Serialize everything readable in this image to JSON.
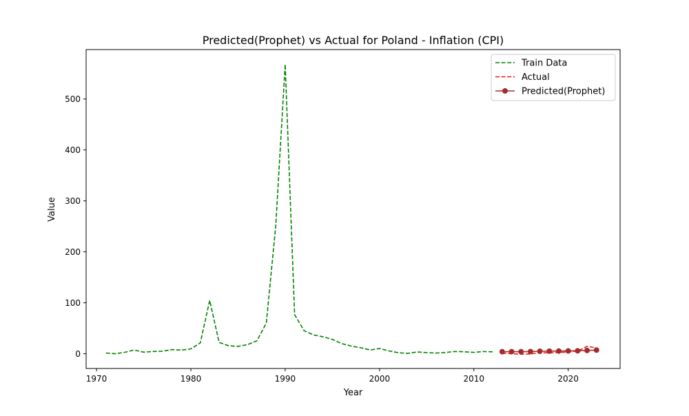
{
  "chart_data": {
    "type": "line",
    "title": "Predicted(Prophet) vs Actual for Poland - Inflation (CPI)",
    "xlabel": "Year",
    "ylabel": "Value",
    "xlim": [
      1968.9,
      2025.5
    ],
    "ylim": [
      -29,
      597
    ],
    "x_ticks": [
      1970,
      1980,
      1990,
      2000,
      2010,
      2020
    ],
    "y_ticks": [
      0,
      100,
      200,
      300,
      400,
      500
    ],
    "grid": false,
    "legend_position": "top-right",
    "series": [
      {
        "name": "Train Data",
        "color": "#008000",
        "style": "dashed",
        "marker": "none",
        "x": [
          1971,
          1972,
          1973,
          1974,
          1975,
          1976,
          1977,
          1978,
          1979,
          1980,
          1981,
          1982,
          1983,
          1984,
          1985,
          1986,
          1987,
          1988,
          1989,
          1990,
          1991,
          1992,
          1993,
          1994,
          1995,
          1996,
          1997,
          1998,
          1999,
          2000,
          2001,
          2002,
          2003,
          2004,
          2005,
          2006,
          2007,
          2008,
          2009,
          2010,
          2011,
          2012
        ],
        "y": [
          1.3,
          0,
          2.8,
          7.2,
          3.0,
          4.4,
          4.9,
          8.1,
          7.1,
          9.4,
          21.2,
          104.5,
          22.1,
          15.7,
          14.4,
          17.7,
          25.2,
          60.2,
          251.1,
          568,
          76.7,
          45.3,
          36.9,
          33.3,
          28.1,
          19.8,
          15.1,
          11.7,
          7.3,
          10.1,
          5.5,
          1.9,
          0.7,
          3.4,
          2.2,
          1.3,
          2.4,
          4.4,
          3.8,
          2.6,
          4.3,
          3.7
        ]
      },
      {
        "name": "Actual",
        "color": "#e41a1c",
        "style": "dashed",
        "marker": "none",
        "x": [
          2013,
          2014,
          2015,
          2016,
          2017,
          2018,
          2019,
          2020,
          2021,
          2022,
          2023
        ],
        "y": [
          0.9,
          0.0,
          -0.9,
          -0.6,
          2.0,
          1.6,
          2.3,
          3.4,
          5.1,
          14.4,
          11.4
        ]
      },
      {
        "name": "Predicted(Prophet)",
        "color": "#a52a2a",
        "style": "solid",
        "marker": "circle",
        "x": [
          2013,
          2014,
          2015,
          2016,
          2017,
          2018,
          2019,
          2020,
          2021,
          2022,
          2023
        ],
        "y": [
          3.9,
          4.0,
          3.9,
          4.2,
          4.8,
          5.0,
          5.2,
          5.4,
          5.7,
          6.4,
          7.1
        ]
      }
    ]
  }
}
